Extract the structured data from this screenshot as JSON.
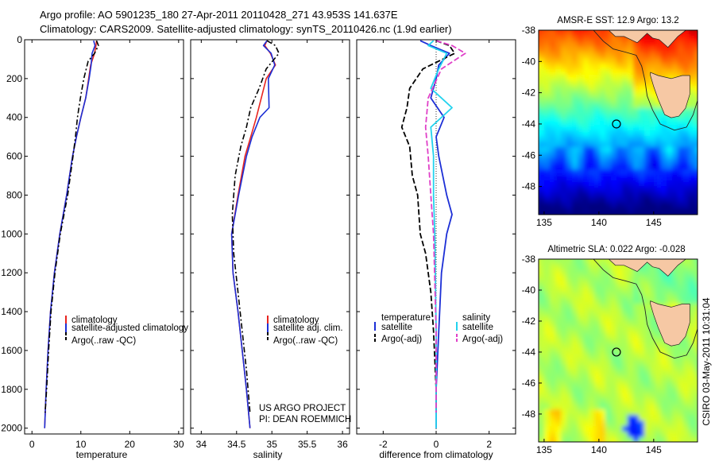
{
  "header": {
    "line1": "Argo profile: AO 5901235_180 27-Apr-2011 20110428_271 43.953S 141.637E",
    "line2": "Climatology: CARS2009. Satellite-adjusted climatology: synTS_20110426.nc (1.9d earlier)"
  },
  "footer_stamp": "CSIRO 03-May-2011 10:31:04",
  "colors": {
    "clim": "#e8241f",
    "sat": "#1c2fd6",
    "argo": "#000000",
    "sal_sat": "#22d3ee",
    "sal_argo": "#e040c8",
    "land": "#f6c8a4"
  },
  "chart_data": [
    {
      "type": "line",
      "id": "temperature",
      "xlabel": "temperature",
      "ylabel": "",
      "xlim": [
        -1.5,
        31
      ],
      "ylim": [
        2030,
        0
      ],
      "xticks": [
        0,
        10,
        20,
        30
      ],
      "yticks": [
        0,
        200,
        400,
        600,
        800,
        1000,
        1200,
        1400,
        1600,
        1800,
        2000
      ],
      "legend": [
        "climatology",
        "satellite-adjusted climatology",
        "Argo(..raw -QC)"
      ],
      "series": [
        {
          "name": "climatology",
          "color": "clim",
          "dash": "",
          "width": 1.6,
          "x": [
            13.2,
            13.1,
            12.8,
            12.0,
            11.6,
            11.0,
            10.0,
            9.1,
            8.3,
            7.1,
            5.7,
            4.6,
            3.8,
            3.3,
            2.9,
            2.6
          ],
          "y": [
            5,
            30,
            70,
            130,
            200,
            300,
            400,
            500,
            600,
            800,
            1000,
            1200,
            1400,
            1600,
            1800,
            2000
          ]
        },
        {
          "name": "satellite-adjusted climatology",
          "color": "sat",
          "dash": "",
          "width": 1.6,
          "x": [
            12.6,
            12.9,
            12.3,
            12.1,
            11.7,
            11.0,
            10.0,
            9.1,
            8.3,
            7.1,
            5.7,
            4.6,
            3.8,
            3.3,
            2.9,
            2.6
          ],
          "y": [
            5,
            30,
            70,
            130,
            200,
            300,
            400,
            500,
            600,
            800,
            1000,
            1200,
            1400,
            1600,
            1800,
            2000
          ]
        },
        {
          "name": "Argo(..raw -QC)",
          "color": "argo",
          "dash": "7,3,2,3",
          "width": 1.6,
          "x": [
            13.2,
            13.6,
            12.8,
            11.5,
            10.6,
            9.9,
            9.3,
            8.9,
            8.4,
            7.3,
            5.8,
            4.7,
            3.9,
            3.4,
            3.0,
            2.7
          ],
          "y": [
            5,
            30,
            70,
            110,
            200,
            300,
            400,
            500,
            600,
            800,
            1000,
            1200,
            1400,
            1600,
            1800,
            1920
          ]
        }
      ]
    },
    {
      "type": "line",
      "id": "salinity",
      "xlabel": "salinity",
      "ylabel": "",
      "xlim": [
        33.85,
        36.1
      ],
      "ylim": [
        2030,
        0
      ],
      "xticks": [
        34,
        34.5,
        35,
        35.5,
        36
      ],
      "yticks": [
        0,
        200,
        400,
        600,
        800,
        1000,
        1200,
        1400,
        1600,
        1800,
        2000
      ],
      "legend": [
        "climatology",
        "satellite adj. clim.",
        "Argo(..raw -QC)"
      ],
      "annotations": [
        "US ARGO PROJECT",
        "PI: DEAN ROEMMICH"
      ],
      "series": [
        {
          "name": "climatology",
          "color": "clim",
          "dash": "",
          "width": 1.6,
          "x": [
            34.93,
            34.9,
            34.98,
            35.05,
            34.92,
            34.85,
            34.78,
            34.7,
            34.62,
            34.52,
            34.43,
            34.45,
            34.52,
            34.58,
            34.64,
            34.69
          ],
          "y": [
            5,
            30,
            70,
            130,
            200,
            300,
            400,
            500,
            600,
            800,
            1000,
            1200,
            1400,
            1600,
            1800,
            2000
          ]
        },
        {
          "name": "satellite adj. clim.",
          "color": "sat",
          "dash": "",
          "width": 1.6,
          "x": [
            34.93,
            34.88,
            34.99,
            35.04,
            34.95,
            34.96,
            34.83,
            34.72,
            34.64,
            34.53,
            34.43,
            34.45,
            34.52,
            34.58,
            34.64,
            34.69
          ],
          "y": [
            5,
            30,
            70,
            130,
            200,
            350,
            400,
            500,
            600,
            800,
            1000,
            1200,
            1400,
            1600,
            1800,
            2000
          ]
        },
        {
          "name": "Argo(..raw -QC)",
          "color": "argo",
          "dash": "7,3,2,3",
          "width": 1.6,
          "x": [
            34.93,
            35.05,
            35.1,
            34.92,
            34.82,
            34.7,
            34.64,
            34.56,
            34.48,
            34.44,
            34.46,
            34.52,
            34.58,
            34.64,
            34.69
          ],
          "y": [
            5,
            30,
            70,
            150,
            250,
            350,
            450,
            550,
            700,
            900,
            1100,
            1300,
            1500,
            1700,
            1920
          ]
        }
      ]
    },
    {
      "type": "line",
      "id": "difference",
      "xlabel": "difference from climatology",
      "ylabel": "",
      "xlim": [
        -3,
        3
      ],
      "ylim": [
        2030,
        0
      ],
      "xticks": [
        -2,
        0,
        2
      ],
      "yticks": [
        0,
        200,
        400,
        600,
        800,
        1000,
        1200,
        1400,
        1600,
        1800,
        2000
      ],
      "legend": [
        "temperature",
        "satellite",
        "Argo(-adj)",
        "salinity",
        "satellite",
        "Argo(-adj)"
      ],
      "series": [
        {
          "name": "temperature satellite",
          "color": "sat",
          "dash": "",
          "width": 1.8,
          "x": [
            -0.6,
            -0.2,
            0.5,
            0.1,
            0.0,
            -0.2,
            0.3,
            0.0,
            0.1,
            0.4,
            0.6,
            0.4,
            0.2,
            0.1,
            0.0,
            0.0
          ],
          "y": [
            5,
            30,
            70,
            130,
            200,
            300,
            400,
            500,
            600,
            800,
            900,
            1000,
            1200,
            1500,
            1800,
            2000
          ]
        },
        {
          "name": "temperature Argo(-adj)",
          "color": "argo",
          "dash": "7,3",
          "width": 1.8,
          "x": [
            0.0,
            0.5,
            0.7,
            -0.5,
            -1.0,
            -1.1,
            -1.3,
            -1.0,
            -0.9,
            -0.7,
            -0.6,
            -0.4,
            -0.2,
            -0.1,
            0.0,
            0.0
          ],
          "y": [
            5,
            30,
            70,
            150,
            250,
            350,
            450,
            550,
            700,
            800,
            1000,
            1100,
            1300,
            1500,
            1800,
            1920
          ]
        },
        {
          "name": "salinity satellite",
          "color": "sal_sat",
          "dash": "",
          "width": 1.8,
          "x": [
            -0.1,
            -0.3,
            0.4,
            0.1,
            -0.2,
            0.6,
            -0.2,
            -0.1,
            -0.1,
            -0.05,
            0.0,
            0.0
          ],
          "y": [
            5,
            30,
            70,
            150,
            250,
            350,
            450,
            600,
            800,
            1000,
            1500,
            2000
          ]
        },
        {
          "name": "salinity Argo(-adj)",
          "color": "sal_argo",
          "dash": "7,3",
          "width": 1.8,
          "x": [
            0.0,
            0.6,
            1.1,
            0.2,
            -0.3,
            -0.4,
            -0.3,
            -0.2,
            -0.1,
            0.0,
            0.0
          ],
          "y": [
            5,
            30,
            70,
            150,
            300,
            450,
            600,
            800,
            1000,
            1500,
            1920
          ]
        }
      ]
    },
    {
      "type": "heatmap",
      "id": "sst-map",
      "title": "AMSR-E SST: 12.9 Argo: 13.2",
      "xlim": [
        134.5,
        149
      ],
      "ylim": [
        -49.8,
        -38
      ],
      "xticks": [
        135,
        140,
        145
      ],
      "yticks": [
        -38,
        -40,
        -42,
        -44,
        -46,
        -48
      ],
      "argo_marker": [
        141.6,
        -44.0
      ]
    },
    {
      "type": "heatmap",
      "id": "sla-map",
      "title": "Altimetric SLA: 0.022 Argo: -0.028",
      "xlim": [
        134.5,
        149
      ],
      "ylim": [
        -49.8,
        -38
      ],
      "xticks": [
        135,
        140,
        145
      ],
      "yticks": [
        -38,
        -40,
        -42,
        -44,
        -46,
        -48
      ],
      "argo_marker": [
        141.6,
        -44.0
      ]
    }
  ]
}
